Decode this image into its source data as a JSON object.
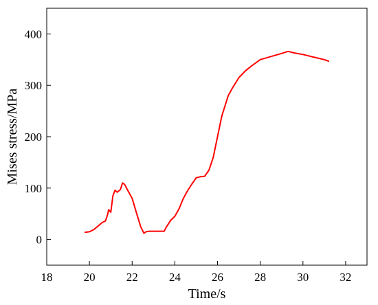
{
  "chart_data": {
    "type": "line",
    "title": "",
    "xlabel": "Time/s",
    "ylabel": "Mises stress/MPa",
    "xlim": [
      18,
      33
    ],
    "ylim": [
      -50,
      450
    ],
    "x_ticks": [
      18,
      20,
      22,
      24,
      26,
      28,
      30,
      32
    ],
    "y_ticks": [
      0,
      100,
      200,
      300,
      400
    ],
    "grid": false,
    "legend": "none",
    "series": [
      {
        "color": "#ff0000",
        "x": [
          19.8,
          20.0,
          20.2,
          20.4,
          20.6,
          20.75,
          20.85,
          20.9,
          21.0,
          21.1,
          21.2,
          21.3,
          21.45,
          21.55,
          21.65,
          21.8,
          22.0,
          22.2,
          22.4,
          22.55,
          22.65,
          22.8,
          23.0,
          23.2,
          23.5,
          23.6,
          23.8,
          24.0,
          24.2,
          24.4,
          24.6,
          24.8,
          25.0,
          25.2,
          25.4,
          25.6,
          25.8,
          26.0,
          26.2,
          26.5,
          26.7,
          27.0,
          27.3,
          27.6,
          28.0,
          28.5,
          29.0,
          29.3,
          29.6,
          30.0,
          30.5,
          31.0,
          31.2
        ],
        "y": [
          14,
          15,
          19,
          26,
          33,
          36,
          48,
          58,
          53,
          85,
          96,
          92,
          97,
          110,
          107,
          95,
          80,
          52,
          25,
          12,
          15,
          16,
          16,
          16,
          16,
          24,
          37,
          45,
          60,
          80,
          95,
          108,
          120,
          122,
          123,
          135,
          160,
          200,
          240,
          280,
          295,
          315,
          328,
          338,
          350,
          356,
          362,
          366,
          363,
          360,
          355,
          350,
          347
        ]
      }
    ]
  }
}
